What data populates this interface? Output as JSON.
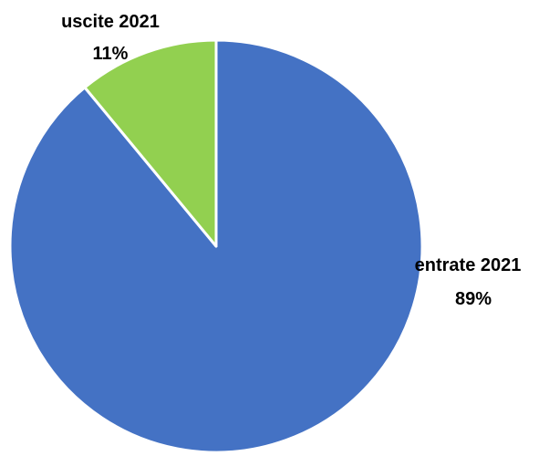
{
  "chart_data": {
    "type": "pie",
    "title": "",
    "slices": [
      {
        "label": "entrate 2021",
        "percent_label": "89%",
        "value": 89,
        "color": "#4472C4"
      },
      {
        "label": "uscite 2021",
        "percent_label": "11%",
        "value": 11,
        "color": "#92D050"
      }
    ],
    "legend": "none",
    "slice_border_color": "#ffffff"
  }
}
